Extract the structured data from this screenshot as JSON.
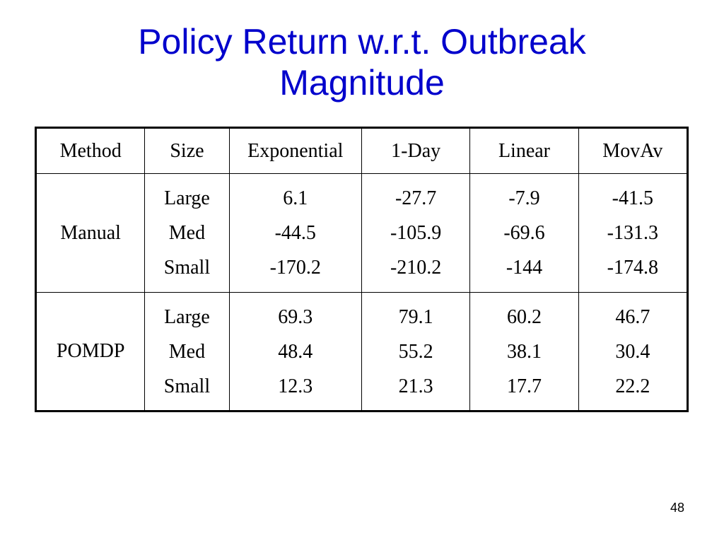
{
  "slide": {
    "title_line1": "Policy Return w.r.t. Outbreak",
    "title_line2": "Magnitude",
    "page_number": "48"
  },
  "table": {
    "headers": {
      "method": "Method",
      "size": "Size",
      "exponential": "Exponential",
      "one_day": "1-Day",
      "linear": "Linear",
      "movav": "MovAv"
    },
    "rows": [
      {
        "method": "Manual",
        "sizes": [
          "Large",
          "Med",
          "Small"
        ],
        "exponential": [
          "6.1",
          "-44.5",
          "-170.2"
        ],
        "one_day": [
          "-27.7",
          "-105.9",
          "-210.2"
        ],
        "linear": [
          "-7.9",
          "-69.6",
          "-144"
        ],
        "movav": [
          "-41.5",
          "-131.3",
          "-174.8"
        ]
      },
      {
        "method": "POMDP",
        "sizes": [
          "Large",
          "Med",
          "Small"
        ],
        "exponential": [
          "69.3",
          "48.4",
          "12.3"
        ],
        "one_day": [
          "79.1",
          "55.2",
          "21.3"
        ],
        "linear": [
          "60.2",
          "38.1",
          "17.7"
        ],
        "movav": [
          "46.7",
          "30.4",
          "22.2"
        ]
      }
    ]
  }
}
